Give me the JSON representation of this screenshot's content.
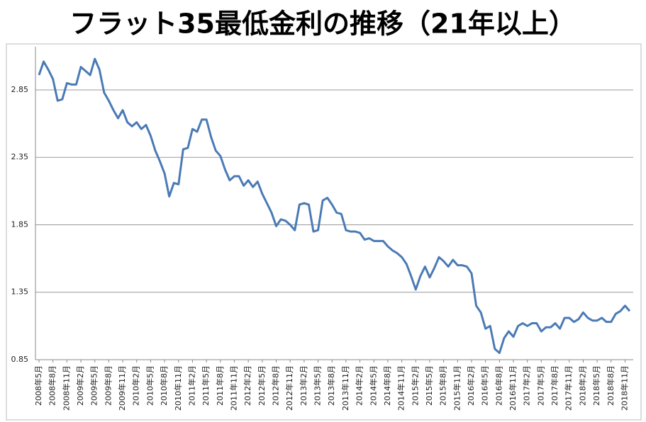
{
  "chart_data": {
    "type": "line",
    "title": "フラット35最低金利の推移（21年以上）",
    "categories": [
      "2008年5月",
      null,
      null,
      "2008年8月",
      null,
      null,
      "2008年11月",
      null,
      null,
      "2009年2月",
      null,
      null,
      "2009年5月",
      null,
      null,
      "2009年8月",
      null,
      null,
      "2009年11月",
      null,
      null,
      "2010年2月",
      null,
      null,
      "2010年5月",
      null,
      null,
      "2010年8月",
      null,
      null,
      "2010年11月",
      null,
      null,
      "2011年2月",
      null,
      null,
      "2011年5月",
      null,
      null,
      "2011年8月",
      null,
      null,
      "2011年11月",
      null,
      null,
      "2012年2月",
      null,
      null,
      "2012年5月",
      null,
      null,
      "2012年8月",
      null,
      null,
      "2012年11月",
      null,
      null,
      "2013年2月",
      null,
      null,
      "2013年5月",
      null,
      null,
      "2013年8月",
      null,
      null,
      "2013年11月",
      null,
      null,
      "2014年2月",
      null,
      null,
      "2014年5月",
      null,
      null,
      "2014年8月",
      null,
      null,
      "2014年11月",
      null,
      null,
      "2015年2月",
      null,
      null,
      "2015年5月",
      null,
      null,
      "2015年8月",
      null,
      null,
      "2015年11月",
      null,
      null,
      "2016年2月",
      null,
      null,
      "2016年5月",
      null,
      null,
      "2016年8月",
      null,
      null,
      "2016年11月",
      null,
      null,
      "2017年2月",
      null,
      null,
      "2017年5月",
      null,
      null,
      "2017年8月",
      null,
      null,
      "2017年11月",
      null,
      null,
      "2018年2月",
      null,
      null,
      "2018年5月",
      null,
      null,
      "2018年8月",
      null,
      null,
      "2018年11月",
      null
    ],
    "values": [
      2.96,
      3.06,
      3.0,
      2.93,
      2.77,
      2.78,
      2.9,
      2.89,
      2.89,
      3.02,
      2.99,
      2.96,
      3.08,
      3.0,
      2.83,
      2.77,
      2.7,
      2.64,
      2.7,
      2.61,
      2.58,
      2.61,
      2.56,
      2.59,
      2.51,
      2.4,
      2.32,
      2.23,
      2.06,
      2.16,
      2.15,
      2.41,
      2.42,
      2.56,
      2.54,
      2.63,
      2.63,
      2.5,
      2.4,
      2.36,
      2.26,
      2.18,
      2.21,
      2.21,
      2.14,
      2.18,
      2.13,
      2.17,
      2.08,
      2.01,
      1.94,
      1.84,
      1.89,
      1.88,
      1.85,
      1.81,
      2.0,
      2.01,
      2.0,
      1.8,
      1.81,
      2.03,
      2.05,
      2.0,
      1.94,
      1.93,
      1.81,
      1.8,
      1.8,
      1.79,
      1.74,
      1.75,
      1.73,
      1.73,
      1.73,
      1.69,
      1.66,
      1.64,
      1.61,
      1.56,
      1.47,
      1.37,
      1.47,
      1.54,
      1.46,
      1.53,
      1.61,
      1.58,
      1.54,
      1.59,
      1.55,
      1.55,
      1.54,
      1.49,
      1.25,
      1.2,
      1.08,
      1.1,
      0.93,
      0.9,
      1.01,
      1.06,
      1.02,
      1.1,
      1.12,
      1.1,
      1.12,
      1.12,
      1.06,
      1.09,
      1.09,
      1.12,
      1.08,
      1.16,
      1.16,
      1.13,
      1.15,
      1.2,
      1.16,
      1.14,
      1.14,
      1.16,
      1.13,
      1.13,
      1.19,
      1.21,
      1.25,
      1.21
    ],
    "color": "#4a7ab5",
    "ylim": [
      0.85,
      3.17
    ],
    "yticks": [
      0.85,
      1.35,
      1.85,
      2.35,
      2.85
    ],
    "grid": true
  }
}
